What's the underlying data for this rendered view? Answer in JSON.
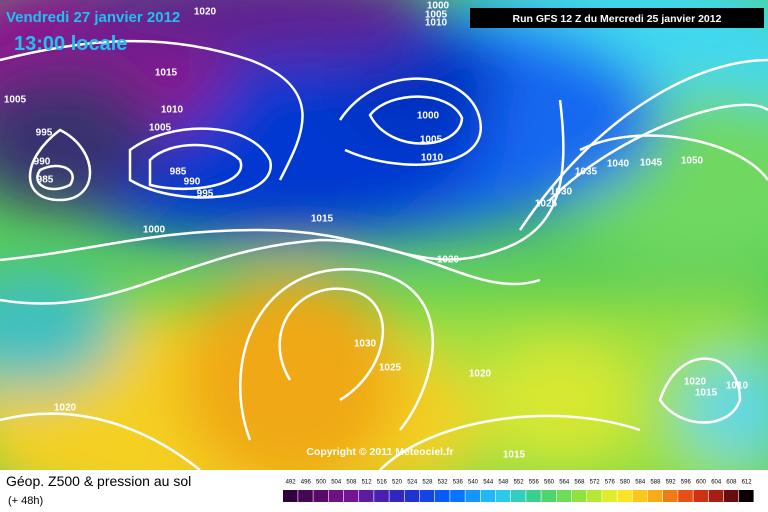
{
  "header": {
    "date": "Vendredi 27 janvier 2012",
    "time": "13:00 locale",
    "run": "Run GFS 12 Z du Mercredi 25 janvier 2012"
  },
  "isobar_labels": [
    "1020",
    "1000",
    "1005",
    "1010",
    "1015",
    "1005",
    "1010",
    "1005",
    "995",
    "1000",
    "1005",
    "1010",
    "990",
    "985",
    "985",
    "990",
    "995",
    "1040",
    "1045",
    "1050",
    "1035",
    "1030",
    "1025",
    "1015",
    "1000",
    "1020",
    "1030",
    "1025",
    "1020",
    "1020",
    "1010",
    "1015",
    "1020",
    "1015"
  ],
  "copyright": "Copyright © 2011 Meteociel.fr",
  "footer": {
    "title": "Géop. Z500 & pression au sol",
    "lead": "(+ 48h)"
  },
  "legend": {
    "labels": [
      492,
      496,
      500,
      504,
      508,
      512,
      516,
      520,
      524,
      528,
      532,
      536,
      540,
      544,
      548,
      552,
      556,
      560,
      564,
      568,
      572,
      576,
      580,
      584,
      588,
      592,
      596,
      600,
      604,
      608,
      612
    ]
  }
}
